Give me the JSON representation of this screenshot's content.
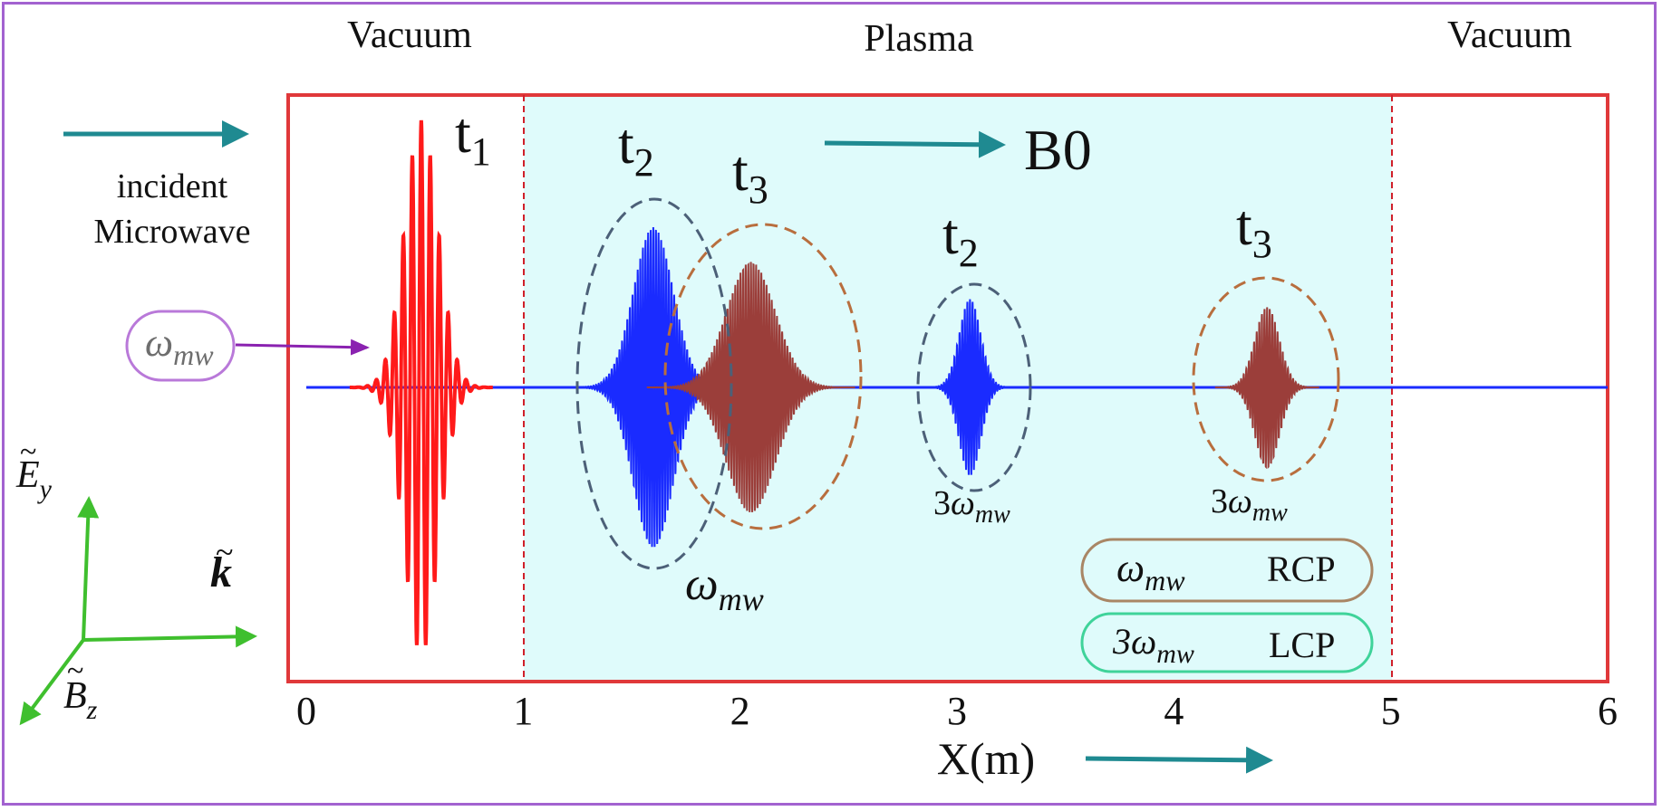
{
  "regions": {
    "left": "Vacuum",
    "middle": "Plasma",
    "right": "Vacuum"
  },
  "incident": {
    "line1": "incident",
    "line2": "Microwave"
  },
  "field_label": "B0",
  "time_labels": {
    "t1": "t",
    "t1_sub": "1",
    "t2": "t",
    "t2_sub": "2",
    "t3": "t",
    "t3_sub": "3"
  },
  "freq": {
    "omega": "ω",
    "sub": "mw",
    "three": "3"
  },
  "legend": [
    {
      "freq": "ω",
      "sub": "mw",
      "pol": "RCP",
      "color": "#a98665"
    },
    {
      "freq": "3ω",
      "sub": "mw",
      "pol": "LCP",
      "color": "#3fd39a"
    }
  ],
  "axes": {
    "E": "E",
    "E_sub": "y",
    "B": "B",
    "B_sub": "z",
    "k": "k"
  },
  "chart_data": {
    "type": "line",
    "xlabel": "X(m)",
    "xlim": [
      0,
      6
    ],
    "xticks": [
      0,
      1,
      2,
      3,
      4,
      5,
      6
    ],
    "plasma_region": [
      1,
      5
    ],
    "colors": {
      "incident": "#ff1a1a",
      "omega_wave": "#1a2bff",
      "third_harmonic": "#9b3e3a",
      "plasma_fill": "#dffbfb",
      "border": "#e0383a",
      "arrow": "#1f8a91",
      "axes_arrow": "#3fbf2e",
      "pointer": "#8a22b0"
    },
    "packets": [
      {
        "name": "incident",
        "center": 0.53,
        "width": 0.11,
        "amplitude": 1.0,
        "color": "incident"
      },
      {
        "name": "t2 ω",
        "center": 1.6,
        "width": 0.13,
        "amplitude": 0.6,
        "color": "omega_wave"
      },
      {
        "name": "t3 ω",
        "center": 2.05,
        "width": 0.16,
        "amplitude": 0.47,
        "color": "third_harmonic"
      },
      {
        "name": "t2 3ω",
        "center": 3.06,
        "width": 0.07,
        "amplitude": 0.33,
        "color": "omega_wave"
      },
      {
        "name": "t3 3ω",
        "center": 4.43,
        "width": 0.08,
        "amplitude": 0.3,
        "color": "third_harmonic"
      }
    ]
  }
}
